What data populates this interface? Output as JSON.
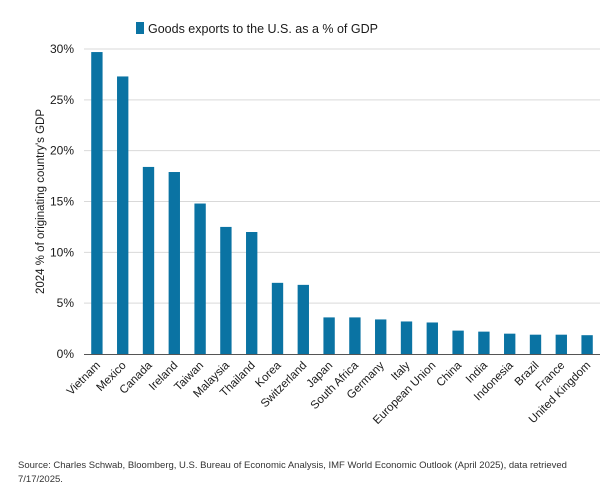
{
  "colors": {
    "bar": "#0a73a3",
    "grid": "#d9d9d9",
    "axis": "#555555"
  },
  "source": "Source: Charles Schwab, Bloomberg, U.S. Bureau of Economic Analysis, IMF World Economic Outlook (April 2025), data retrieved 7/17/2025.",
  "chart_data": {
    "type": "bar",
    "ylabel": "2024 % of originating country's GDP",
    "ylim": [
      0,
      30
    ],
    "yticks": [
      "0%",
      "5%",
      "10%",
      "15%",
      "20%",
      "25%",
      "30%"
    ],
    "grid": true,
    "legend_position": "top",
    "categories": [
      "Vietnam",
      "Mexico",
      "Canada",
      "Ireland",
      "Taiwan",
      "Malaysia",
      "Thailand",
      "Korea",
      "Switzerland",
      "Japan",
      "South Africa",
      "Germany",
      "Italy",
      "European Union",
      "China",
      "India",
      "Indonesia",
      "Brazil",
      "France",
      "United Kingdom"
    ],
    "series": [
      {
        "name": "Goods exports to the U.S. as a % of GDP",
        "values": [
          29.7,
          27.3,
          18.4,
          17.9,
          14.8,
          12.5,
          12.0,
          7.0,
          6.8,
          3.6,
          3.6,
          3.4,
          3.2,
          3.1,
          2.3,
          2.2,
          2.0,
          1.9,
          1.9,
          1.85
        ]
      }
    ]
  }
}
